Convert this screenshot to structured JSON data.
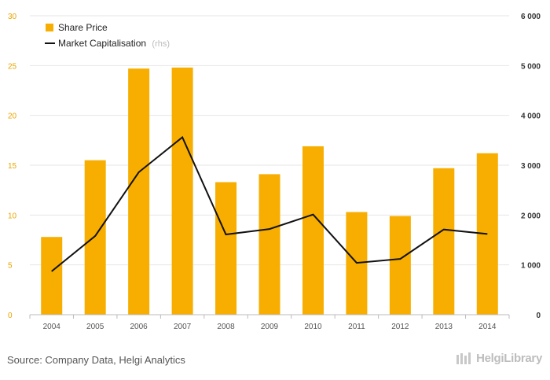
{
  "chart_data": {
    "type": "bar",
    "categories": [
      "2004",
      "2005",
      "2006",
      "2007",
      "2008",
      "2009",
      "2010",
      "2011",
      "2012",
      "2013",
      "2014"
    ],
    "series": [
      {
        "name": "Share Price",
        "type": "bar",
        "axis": "left",
        "color": "#f7ae00",
        "values": [
          7.8,
          15.5,
          24.7,
          24.8,
          13.3,
          14.1,
          16.9,
          10.3,
          9.9,
          14.7,
          16.2
        ]
      },
      {
        "name": "Market Capitalisation",
        "type": "line",
        "axis": "right",
        "color": "#111111",
        "values": [
          870,
          1580,
          2860,
          3560,
          1610,
          1720,
          2010,
          1040,
          1120,
          1710,
          1620
        ]
      }
    ],
    "left_axis": {
      "min": 0,
      "max": 30,
      "ticks": [
        "0",
        "5",
        "10",
        "15",
        "20",
        "25",
        "30"
      ]
    },
    "right_axis": {
      "min": 0,
      "max": 6000,
      "ticks": [
        "0",
        "1 000",
        "2 000",
        "3 000",
        "4 000",
        "5 000",
        "6 000"
      ]
    },
    "legend": {
      "placement": "top-left",
      "rhs_note": "(rhs)"
    },
    "grid": true
  },
  "source_text": "Source: Company Data, Helgi Analytics",
  "logo_text": "HelgiLibrary"
}
